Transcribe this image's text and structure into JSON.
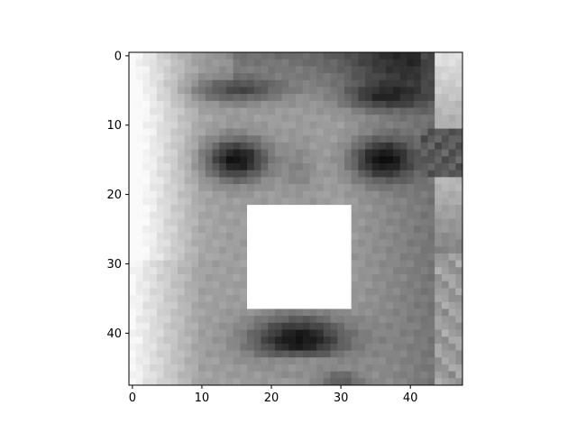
{
  "chart_data": {
    "type": "heatmap",
    "colormap": "gray",
    "image_shape": [
      48,
      48
    ],
    "x_range": [
      -0.5,
      47.5
    ],
    "y_range": [
      -0.5,
      47.5
    ],
    "y_inverted": true,
    "xticks": [
      0,
      10,
      20,
      30,
      40
    ],
    "yticks": [
      0,
      10,
      20,
      30,
      40
    ],
    "masked_region": {
      "x": [
        17,
        31
      ],
      "y": [
        22,
        36
      ],
      "value": "white"
    },
    "title": "",
    "xlabel": "",
    "ylabel": ""
  },
  "palette": {
    "axes": "#000000",
    "mask": "#ffffff"
  }
}
